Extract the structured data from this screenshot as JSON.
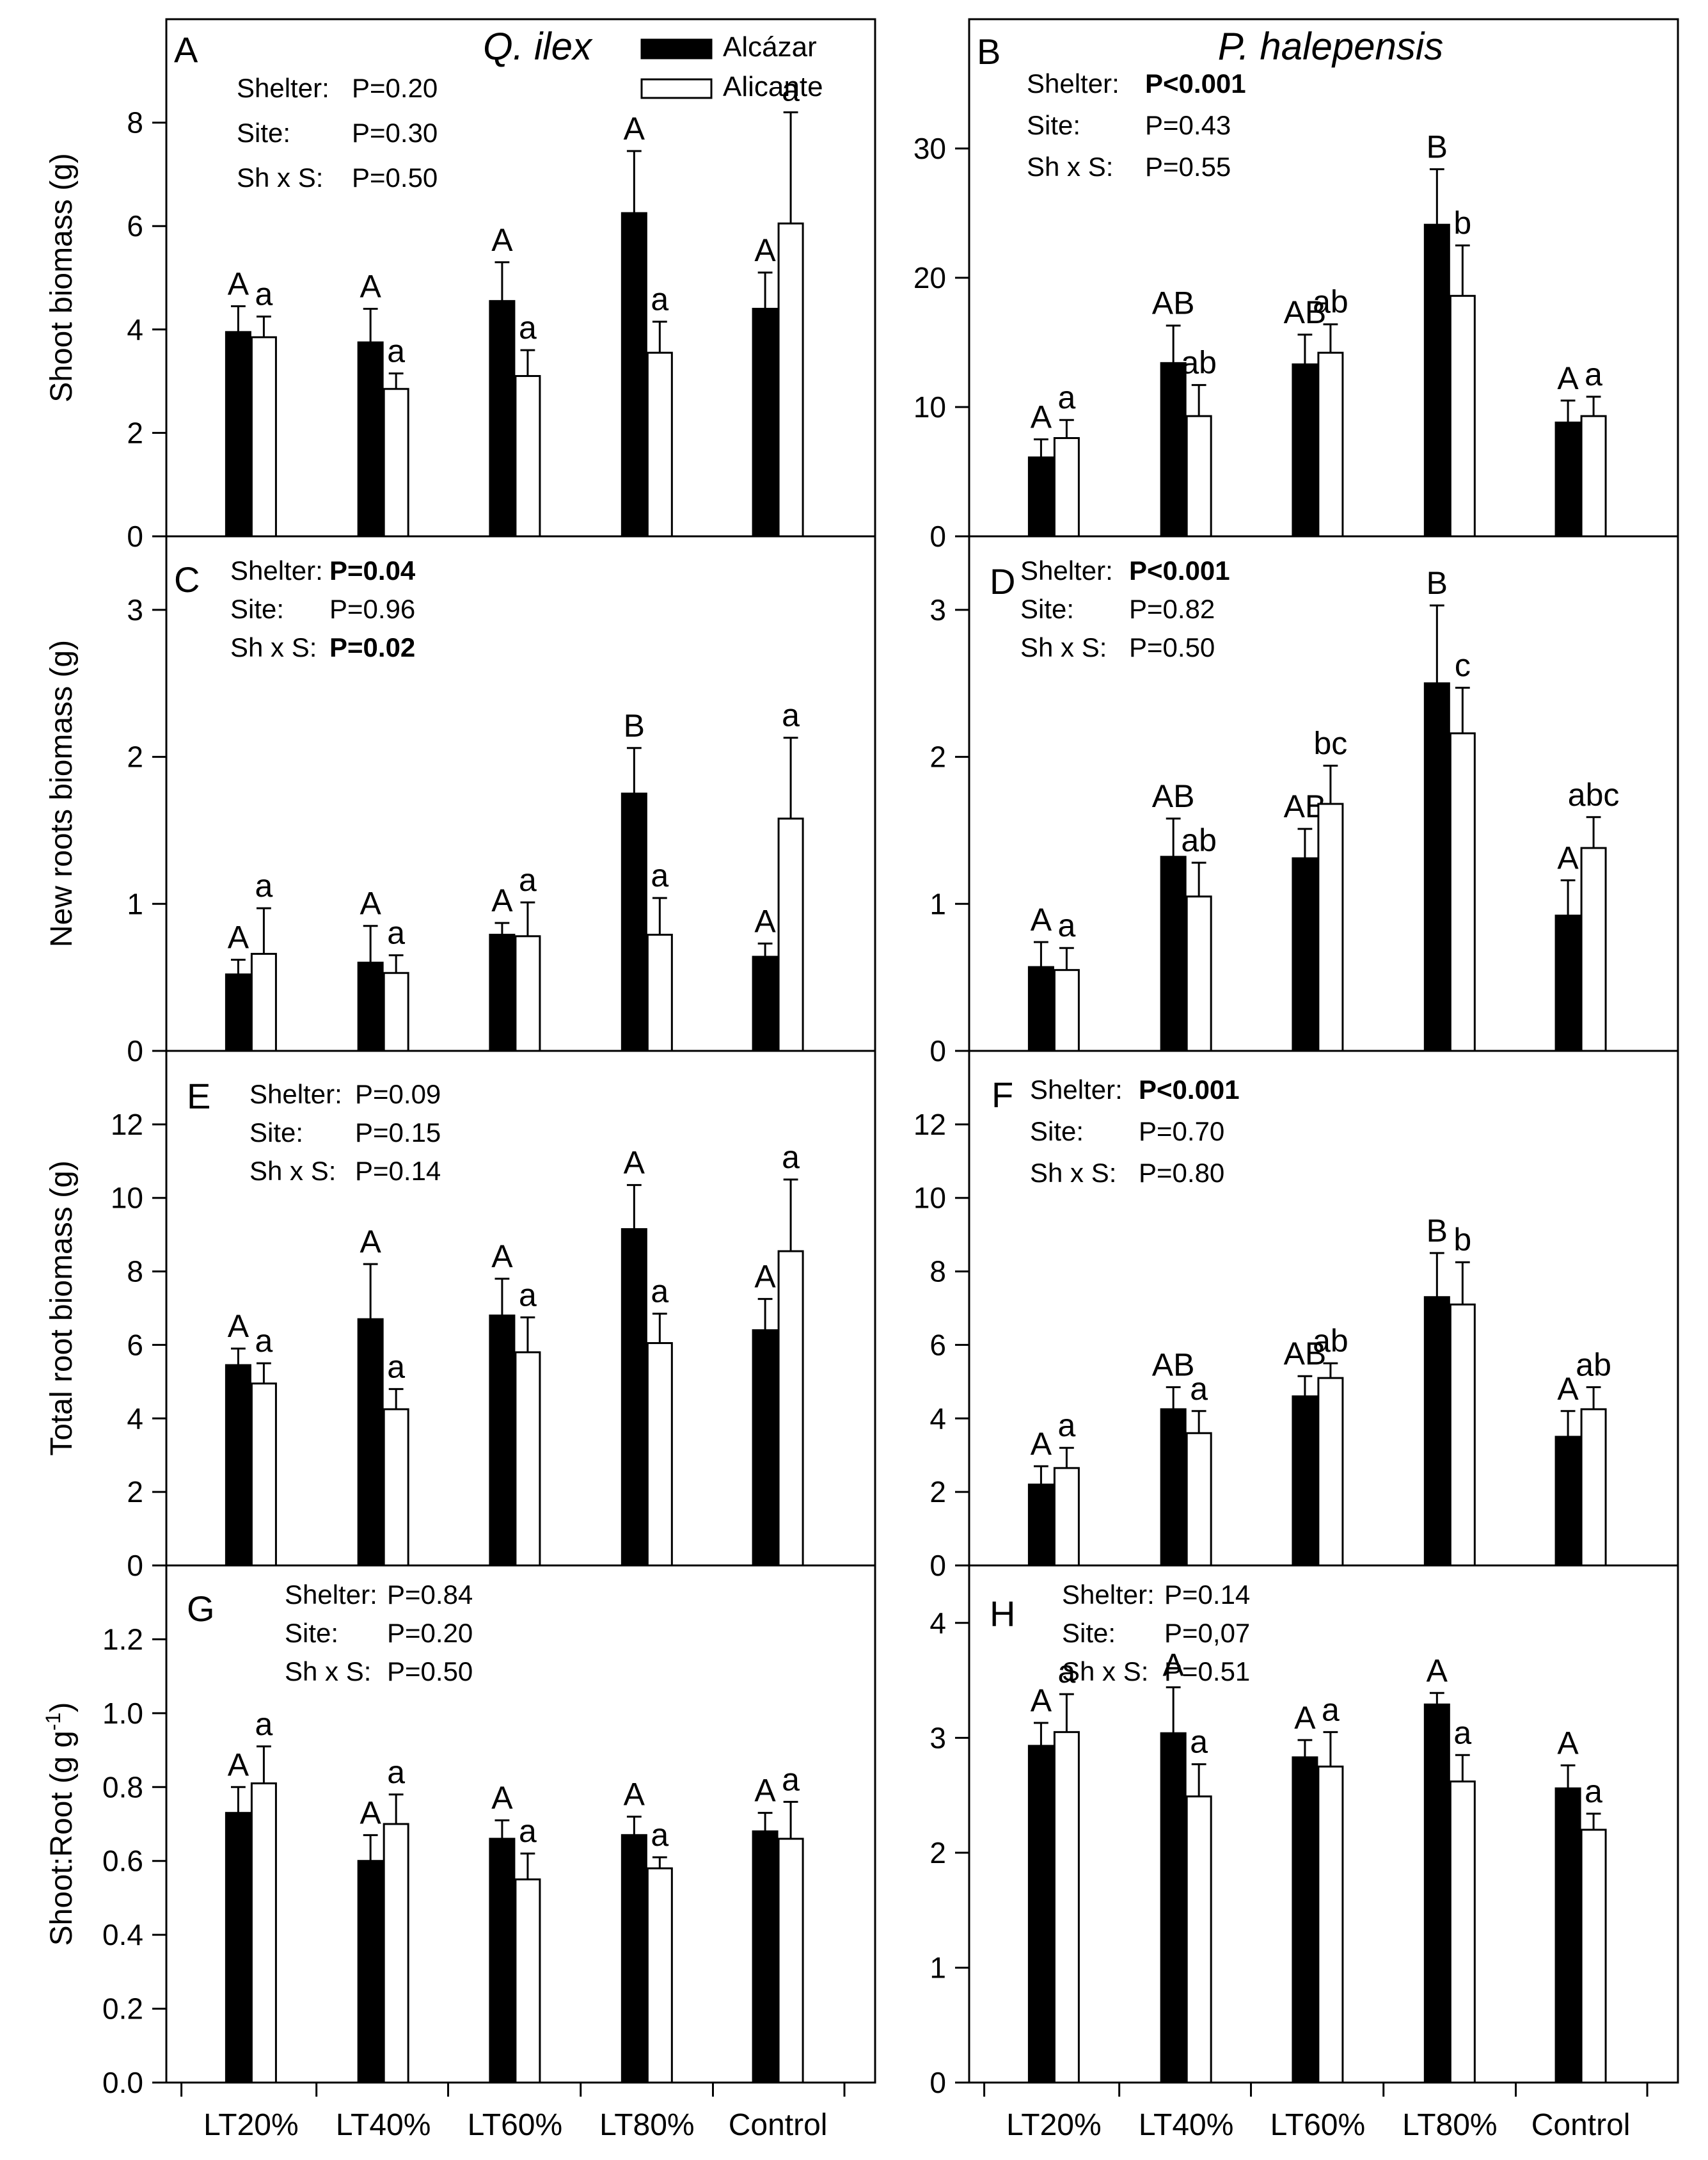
{
  "figure": {
    "species_left": "Q. ilex",
    "species_right": "P. halepensis",
    "x_categories": [
      "LT20%",
      "LT40%",
      "LT60%",
      "LT80%",
      "Control"
    ],
    "legend": [
      {
        "name": "Alcázar",
        "color": "#000000"
      },
      {
        "name": "Alicante",
        "color": "#ffffff"
      }
    ]
  },
  "chart_data": [
    {
      "panel": "A",
      "type": "bar",
      "species": "Q. ilex",
      "ylabel": "Shoot biomass (g)",
      "ylim": [
        0,
        10
      ],
      "yticks": [
        "0",
        "2",
        "4",
        "6",
        "8"
      ],
      "yticks_values": [
        0,
        2,
        4,
        6,
        8
      ],
      "categories": [
        "LT20%",
        "LT40%",
        "LT60%",
        "LT80%",
        "Control"
      ],
      "series": [
        {
          "name": "Alcázar",
          "values": [
            3.95,
            3.75,
            4.55,
            6.25,
            4.4
          ],
          "errors": [
            0.5,
            0.65,
            0.75,
            1.2,
            0.7
          ],
          "letters": [
            "A",
            "A",
            "A",
            "A",
            "A"
          ]
        },
        {
          "name": "Alicante",
          "values": [
            3.85,
            2.85,
            3.1,
            3.55,
            6.05
          ],
          "errors": [
            0.4,
            0.3,
            0.5,
            0.6,
            2.15
          ],
          "letters": [
            "a",
            "a",
            "a",
            "a",
            "a"
          ]
        }
      ],
      "stats": [
        {
          "label": "Shelter:",
          "value": "P=0.20",
          "bold": false
        },
        {
          "label": "Site:",
          "value": "P=0.30",
          "bold": false
        },
        {
          "label": "Sh x S:",
          "value": "P=0.50",
          "bold": false
        }
      ]
    },
    {
      "panel": "B",
      "type": "bar",
      "species": "P. halepensis",
      "ylabel": "",
      "ylim": [
        0,
        40
      ],
      "yticks": [
        "0",
        "10",
        "20",
        "30"
      ],
      "yticks_values": [
        0,
        10,
        20,
        30
      ],
      "categories": [
        "LT20%",
        "LT40%",
        "LT60%",
        "LT80%",
        "Control"
      ],
      "series": [
        {
          "name": "Alcázar",
          "values": [
            6.1,
            13.4,
            13.3,
            24.1,
            8.8
          ],
          "errors": [
            1.4,
            2.9,
            2.3,
            4.3,
            1.7
          ],
          "letters": [
            "A",
            "AB",
            "AB",
            "B",
            "A"
          ]
        },
        {
          "name": "Alicante",
          "values": [
            7.6,
            9.3,
            14.2,
            18.6,
            9.3
          ],
          "errors": [
            1.4,
            2.4,
            2.2,
            3.9,
            1.5
          ],
          "letters": [
            "a",
            "ab",
            "ab",
            "b",
            "a"
          ]
        }
      ],
      "stats": [
        {
          "label": "Shelter:",
          "value": "P<0.001",
          "bold": true
        },
        {
          "label": "Site:",
          "value": "P=0.43",
          "bold": false
        },
        {
          "label": "Sh x S:",
          "value": "P=0.55",
          "bold": false
        }
      ]
    },
    {
      "panel": "C",
      "type": "bar",
      "species": "Q. ilex",
      "ylabel": "New roots biomass (g)",
      "ylim": [
        0,
        3.5
      ],
      "yticks": [
        "0",
        "1",
        "2",
        "3"
      ],
      "yticks_values": [
        0,
        1,
        2,
        3
      ],
      "categories": [
        "LT20%",
        "LT40%",
        "LT60%",
        "LT80%",
        "Control"
      ],
      "series": [
        {
          "name": "Alcázar",
          "values": [
            0.52,
            0.6,
            0.79,
            1.75,
            0.64
          ],
          "errors": [
            0.1,
            0.25,
            0.08,
            0.31,
            0.09
          ],
          "letters": [
            "A",
            "A",
            "A",
            "B",
            "A"
          ]
        },
        {
          "name": "Alicante",
          "values": [
            0.66,
            0.53,
            0.78,
            0.79,
            1.58
          ],
          "errors": [
            0.31,
            0.12,
            0.23,
            0.25,
            0.55
          ],
          "letters": [
            "a",
            "a",
            "a",
            "a",
            "a"
          ]
        }
      ],
      "stats": [
        {
          "label": "Shelter:",
          "value": "P=0.04",
          "bold": true
        },
        {
          "label": "Site:",
          "value": "P=0.96",
          "bold": false
        },
        {
          "label": "Sh x S:",
          "value": "P=0.02",
          "bold": true
        }
      ]
    },
    {
      "panel": "D",
      "type": "bar",
      "species": "P. halepensis",
      "ylabel": "",
      "ylim": [
        0,
        3.5
      ],
      "yticks": [
        "0",
        "1",
        "2",
        "3"
      ],
      "yticks_values": [
        0,
        1,
        2,
        3
      ],
      "categories": [
        "LT20%",
        "LT40%",
        "LT60%",
        "LT80%",
        "Control"
      ],
      "series": [
        {
          "name": "Alcázar",
          "values": [
            0.57,
            1.32,
            1.31,
            2.5,
            0.92
          ],
          "errors": [
            0.17,
            0.26,
            0.2,
            0.53,
            0.24
          ],
          "letters": [
            "A",
            "AB",
            "AB",
            "B",
            "A"
          ]
        },
        {
          "name": "Alicante",
          "values": [
            0.55,
            1.05,
            1.68,
            2.16,
            1.38
          ],
          "errors": [
            0.15,
            0.23,
            0.26,
            0.31,
            0.21
          ],
          "letters": [
            "a",
            "ab",
            "bc",
            "c",
            "abc"
          ]
        }
      ],
      "stats": [
        {
          "label": "Shelter:",
          "value": "P<0.001",
          "bold": true
        },
        {
          "label": "Site:",
          "value": "P=0.82",
          "bold": false
        },
        {
          "label": "Sh x S:",
          "value": "P=0.50",
          "bold": false
        }
      ]
    },
    {
      "panel": "E",
      "type": "bar",
      "species": "Q. ilex",
      "ylabel": "Total root biomass (g)",
      "ylim": [
        0,
        14
      ],
      "yticks": [
        "0",
        "2",
        "4",
        "6",
        "8",
        "10",
        "12"
      ],
      "yticks_values": [
        0,
        2,
        4,
        6,
        8,
        10,
        12
      ],
      "categories": [
        "LT20%",
        "LT40%",
        "LT60%",
        "LT80%",
        "Control"
      ],
      "series": [
        {
          "name": "Alcázar",
          "values": [
            5.45,
            6.7,
            6.8,
            9.15,
            6.4
          ],
          "errors": [
            0.45,
            1.5,
            1.0,
            1.2,
            0.85
          ],
          "letters": [
            "A",
            "A",
            "A",
            "A",
            "A"
          ]
        },
        {
          "name": "Alicante",
          "values": [
            4.95,
            4.25,
            5.8,
            6.05,
            8.55
          ],
          "errors": [
            0.55,
            0.55,
            0.95,
            0.8,
            1.95
          ],
          "letters": [
            "a",
            "a",
            "a",
            "a",
            "a"
          ]
        }
      ],
      "stats": [
        {
          "label": "Shelter:",
          "value": "P=0.09",
          "bold": false
        },
        {
          "label": "Site:",
          "value": "P=0.15",
          "bold": false
        },
        {
          "label": "Sh x S:",
          "value": "P=0.14",
          "bold": false
        }
      ]
    },
    {
      "panel": "F",
      "type": "bar",
      "species": "P. halepensis",
      "ylabel": "",
      "ylim": [
        0,
        14
      ],
      "yticks": [
        "0",
        "2",
        "4",
        "6",
        "8",
        "10",
        "12"
      ],
      "yticks_values": [
        0,
        2,
        4,
        6,
        8,
        10,
        12
      ],
      "categories": [
        "LT20%",
        "LT40%",
        "LT60%",
        "LT80%",
        "Control"
      ],
      "series": [
        {
          "name": "Alcázar",
          "values": [
            2.2,
            4.25,
            4.6,
            7.3,
            3.5
          ],
          "errors": [
            0.5,
            0.6,
            0.55,
            1.2,
            0.7
          ],
          "letters": [
            "A",
            "AB",
            "AB",
            "B",
            "A"
          ]
        },
        {
          "name": "Alicante",
          "values": [
            2.65,
            3.6,
            5.1,
            7.1,
            4.25
          ],
          "errors": [
            0.55,
            0.6,
            0.4,
            1.15,
            0.6
          ],
          "letters": [
            "a",
            "a",
            "ab",
            "b",
            "ab"
          ]
        }
      ],
      "stats": [
        {
          "label": "Shelter:",
          "value": "P<0.001",
          "bold": true
        },
        {
          "label": "Site:",
          "value": "P=0.70",
          "bold": false
        },
        {
          "label": "Sh x S:",
          "value": "P=0.80",
          "bold": false
        }
      ]
    },
    {
      "panel": "G",
      "type": "bar",
      "species": "Q. ilex",
      "ylabel": "Shoot:Root (g g",
      "ylabel_sup": "-1",
      "ylabel_end": ")",
      "ylim": [
        0,
        1.4
      ],
      "yticks": [
        "0.0",
        "0.2",
        "0.4",
        "0.6",
        "0.8",
        "1.0",
        "1.2"
      ],
      "yticks_values": [
        0,
        0.2,
        0.4,
        0.6,
        0.8,
        1.0,
        1.2
      ],
      "categories": [
        "LT20%",
        "LT40%",
        "LT60%",
        "LT80%",
        "Control"
      ],
      "series": [
        {
          "name": "Alcázar",
          "values": [
            0.73,
            0.6,
            0.66,
            0.67,
            0.68
          ],
          "errors": [
            0.07,
            0.07,
            0.05,
            0.05,
            0.05
          ],
          "letters": [
            "A",
            "A",
            "A",
            "A",
            "A"
          ]
        },
        {
          "name": "Alicante",
          "values": [
            0.81,
            0.7,
            0.55,
            0.58,
            0.66
          ],
          "errors": [
            0.1,
            0.08,
            0.07,
            0.03,
            0.1
          ],
          "letters": [
            "a",
            "a",
            "a",
            "a",
            "a"
          ]
        }
      ],
      "stats": [
        {
          "label": "Shelter:",
          "value": "P=0.84",
          "bold": false
        },
        {
          "label": "Site:",
          "value": "P=0.20",
          "bold": false
        },
        {
          "label": "Sh x S:",
          "value": "P=0.50",
          "bold": false
        }
      ]
    },
    {
      "panel": "H",
      "type": "bar",
      "species": "P. halepensis",
      "ylabel": "",
      "ylim": [
        0,
        4.5
      ],
      "yticks": [
        "0",
        "1",
        "2",
        "3",
        "4"
      ],
      "yticks_values": [
        0,
        1,
        2,
        3,
        4
      ],
      "categories": [
        "LT20%",
        "LT40%",
        "LT60%",
        "LT80%",
        "Control"
      ],
      "series": [
        {
          "name": "Alcázar",
          "values": [
            2.93,
            3.04,
            2.83,
            3.29,
            2.56
          ],
          "errors": [
            0.2,
            0.4,
            0.15,
            0.1,
            0.2
          ],
          "letters": [
            "A",
            "A",
            "A",
            "A",
            "A"
          ]
        },
        {
          "name": "Alicante",
          "values": [
            3.05,
            2.49,
            2.75,
            2.62,
            2.2
          ],
          "errors": [
            0.33,
            0.28,
            0.3,
            0.23,
            0.14
          ],
          "letters": [
            "a",
            "a",
            "a",
            "a",
            "a"
          ]
        }
      ],
      "stats": [
        {
          "label": "Shelter:",
          "value": "P=0.14",
          "bold": false
        },
        {
          "label": "Site:",
          "value": "P=0,07",
          "bold": false
        },
        {
          "label": "Sh x S:",
          "value": "P=0.51",
          "bold": false
        }
      ]
    }
  ]
}
